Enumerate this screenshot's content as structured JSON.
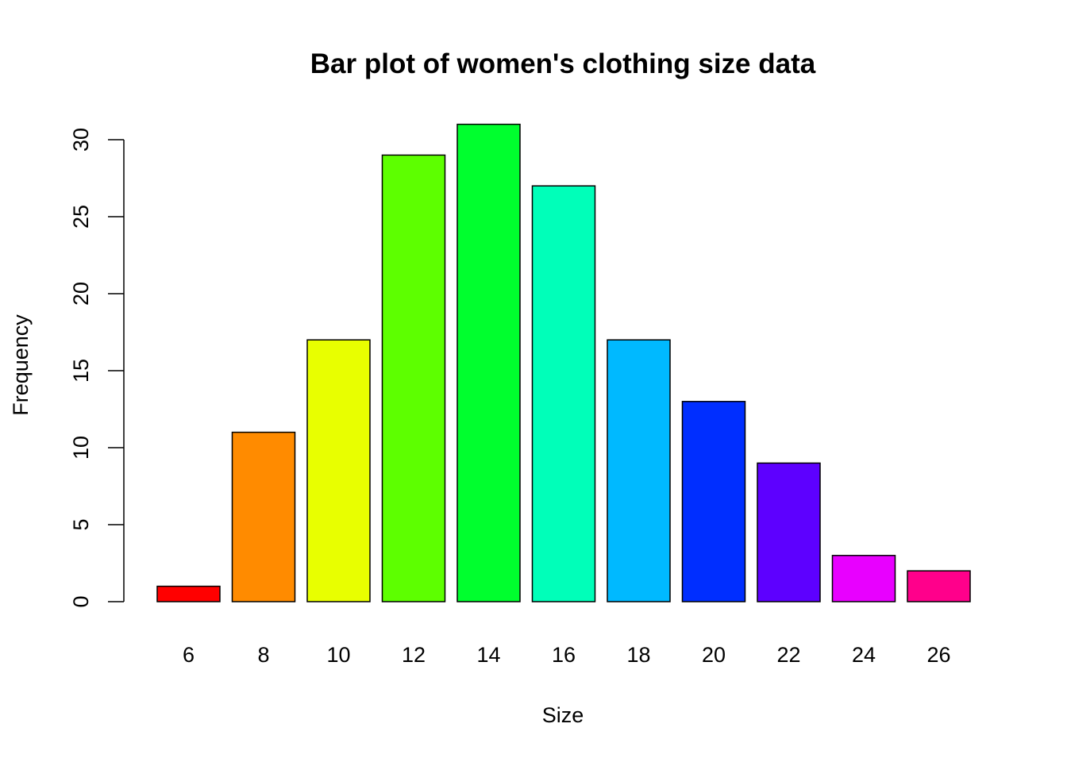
{
  "chart_data": {
    "type": "bar",
    "title": "Bar plot of women's clothing size data",
    "xlabel": "Size",
    "ylabel": "Frequency",
    "categories": [
      "6",
      "8",
      "10",
      "12",
      "14",
      "16",
      "18",
      "20",
      "22",
      "24",
      "26"
    ],
    "values": [
      1,
      11,
      17,
      29,
      31,
      27,
      17,
      13,
      9,
      3,
      2
    ],
    "colors": [
      "#FF0000",
      "#FF8B00",
      "#E8FF00",
      "#5DFF00",
      "#00FF2E",
      "#00FFB9",
      "#00B9FF",
      "#002EFF",
      "#5D00FF",
      "#E800FF",
      "#FF008B"
    ],
    "yticks": [
      0,
      5,
      10,
      15,
      20,
      25,
      30
    ],
    "ylim": [
      0,
      31
    ],
    "grid": false,
    "legend": "none"
  }
}
